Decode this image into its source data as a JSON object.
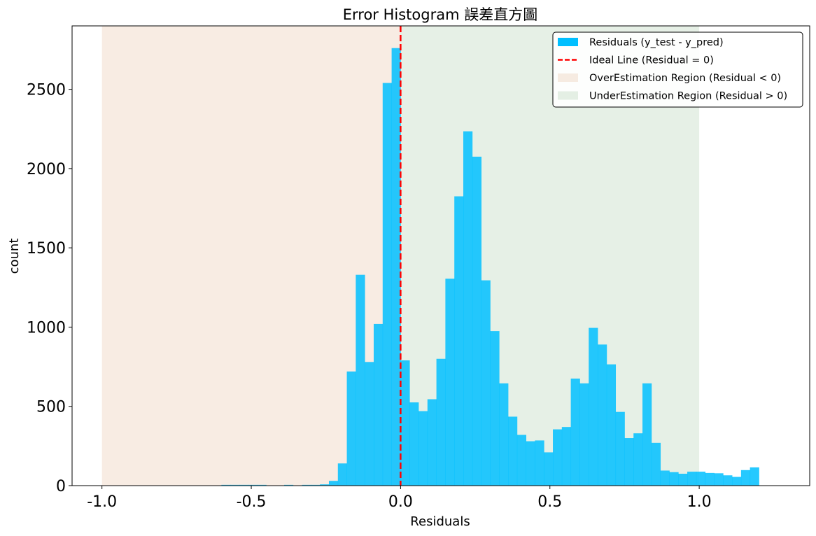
{
  "chart_data": {
    "type": "bar",
    "title": "Error Histogram 誤差直方圖",
    "xlabel": "Residuals",
    "ylabel": "count",
    "xlim": [
      -1.1,
      1.37
    ],
    "ylim": [
      0,
      2900
    ],
    "xticks": [
      -1.0,
      -0.5,
      0.0,
      0.5,
      1.0
    ],
    "xtick_labels": [
      "-1.0",
      "-0.5",
      "0.0",
      "0.5",
      "1.0"
    ],
    "yticks": [
      0,
      500,
      1000,
      1500,
      2000,
      2500
    ],
    "ytick_labels": [
      "0",
      "500",
      "1000",
      "1500",
      "2000",
      "2500"
    ],
    "grid": false,
    "legend_position": "top-right",
    "bar_color": "#00BFFF",
    "bin_edges_start": -0.6,
    "bin_width": 0.03,
    "counts": [
      5,
      5,
      5,
      5,
      5,
      0,
      0,
      5,
      0,
      5,
      5,
      8,
      30,
      140,
      720,
      1330,
      780,
      1020,
      2540,
      2760,
      790,
      525,
      470,
      545,
      800,
      1305,
      1825,
      2235,
      2075,
      1295,
      975,
      645,
      435,
      320,
      280,
      285,
      210,
      355,
      370,
      675,
      645,
      995,
      890,
      765,
      465,
      300,
      330,
      645,
      270,
      95,
      85,
      75,
      88,
      88,
      80,
      78,
      65,
      55,
      98,
      115
    ],
    "ideal_line": {
      "x": 0,
      "color": "#FF0000",
      "style": "dashed"
    },
    "regions": [
      {
        "name": "OverEstimation Region (Residual < 0)",
        "x_start": -1.0,
        "x_end": 0.0,
        "color": "#E0A87E",
        "alpha": 0.22
      },
      {
        "name": "UnderEstimation Region (Residual > 0)",
        "x_start": 0.0,
        "x_end": 1.0,
        "color": "#8FBC8F",
        "alpha": 0.22
      }
    ],
    "legend": [
      {
        "label": "Residuals (y_test - y_pred)",
        "kind": "patch",
        "color": "#00BFFF"
      },
      {
        "label": "Ideal Line (Residual = 0)",
        "kind": "dashed-line",
        "color": "#FF0000"
      },
      {
        "label": "OverEstimation Region (Residual < 0)",
        "kind": "patch",
        "color": "#E0A87E",
        "alpha": 0.22
      },
      {
        "label": "UnderEstimation Region (Residual > 0)",
        "kind": "patch",
        "color": "#8FBC8F",
        "alpha": 0.22
      }
    ]
  }
}
